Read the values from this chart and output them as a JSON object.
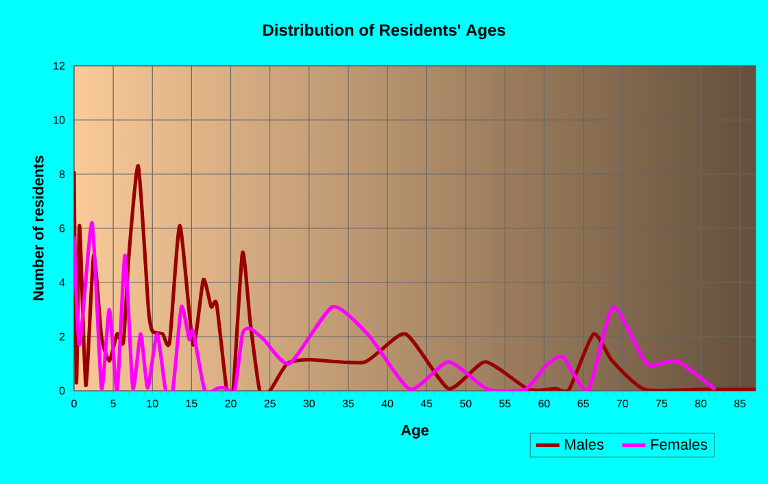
{
  "chart_data": {
    "type": "line",
    "title": "Distribution of Residents' Ages",
    "xlabel": "Age",
    "ylabel": "Number of residents",
    "xlim": [
      0,
      87
    ],
    "xticks": [
      0,
      5,
      10,
      15,
      20,
      25,
      30,
      35,
      40,
      45,
      50,
      55,
      60,
      65,
      70,
      75,
      80,
      85
    ],
    "ylim": [
      0,
      12
    ],
    "yticks": [
      0,
      2,
      4,
      6,
      8,
      10,
      12
    ],
    "grid": true,
    "legend": "bottom right",
    "marker": "none",
    "line_style": "solid",
    "series": [
      {
        "name": "Males",
        "color": "#990000",
        "x": [
          0,
          0.3,
          0.7,
          1.5,
          2.5,
          3.5,
          4.5,
          5.5,
          6.3,
          7,
          8.2,
          9.5,
          10,
          11.3,
          12.2,
          13.5,
          15.2,
          16.5,
          17.5,
          18.2,
          19.5,
          20.3,
          21.5,
          22.5,
          23.7,
          25,
          27.2,
          30.1,
          37.1,
          42.3,
          47.8,
          52.5,
          58,
          61.4,
          63.2,
          66.3,
          68.7,
          72.8,
          80,
          87
        ],
        "values": [
          8.1,
          0.3,
          6.1,
          0.2,
          5.0,
          2.0,
          1.1,
          2.1,
          1.8,
          5.0,
          8.3,
          3.0,
          2.2,
          2.1,
          1.8,
          6.1,
          1.7,
          4.1,
          3.1,
          3.2,
          0,
          0,
          5.1,
          2.5,
          0,
          0,
          1.0,
          1.15,
          1.06,
          2.1,
          0.08,
          1.07,
          0.05,
          0.08,
          0.05,
          2.1,
          1.1,
          0.05,
          0.05,
          0.05
        ]
      },
      {
        "name": "Females",
        "color": "#ff00ff",
        "x": [
          0,
          0.7,
          2.3,
          3.5,
          4.5,
          5.5,
          6.5,
          7.5,
          8.5,
          9.4,
          10.6,
          11.7,
          12.6,
          13.7,
          14.7,
          15.2,
          16.7,
          18.4,
          19.3,
          20.5,
          21.5,
          22.5,
          24.2,
          27.5,
          33,
          37.6,
          42.9,
          47.8,
          52.8,
          57.6,
          60.3,
          62.4,
          65.6,
          68.8,
          73.1,
          76.9,
          81.8
        ],
        "values": [
          5.7,
          1.7,
          6.2,
          0.1,
          3.0,
          0,
          5.0,
          0.1,
          2.1,
          0.1,
          2.1,
          0,
          0,
          3.1,
          1.9,
          2.2,
          0,
          0.1,
          0.1,
          0,
          2.1,
          2.3,
          1.9,
          1.0,
          3.1,
          2.05,
          0.05,
          1.07,
          0.05,
          0.05,
          0.95,
          1.25,
          0,
          3.1,
          1.0,
          1.1,
          0.05
        ]
      }
    ]
  }
}
